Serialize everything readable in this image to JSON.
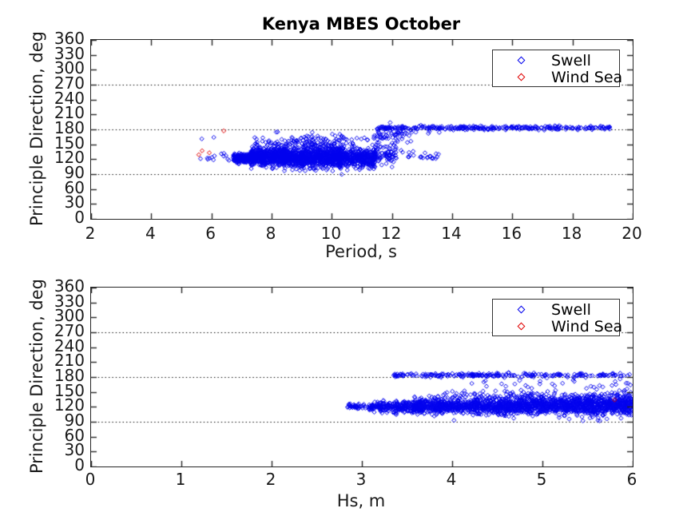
{
  "figure": {
    "title": "Kenya MBES October",
    "background_color": "#ffffff",
    "axis_color": "#262626",
    "text_color": "#1a1a1a",
    "gridline_color": "#000000",
    "swell_color": "#0000ee",
    "wind_sea_color": "#e00000",
    "marker": "open-diamond"
  },
  "chart_data": [
    {
      "type": "scatter",
      "title": "Kenya MBES October",
      "xlabel": "Period, s",
      "ylabel": "Principle Direction, deg",
      "xlim": [
        2,
        20
      ],
      "ylim": [
        0,
        360
      ],
      "xticks": [
        2,
        4,
        6,
        8,
        10,
        12,
        14,
        16,
        18,
        20
      ],
      "yticks": [
        0,
        30,
        60,
        90,
        120,
        150,
        180,
        210,
        240,
        270,
        300,
        330,
        360
      ],
      "gridlines_y": [
        90,
        180,
        270
      ],
      "grid_style": "dotted",
      "legend": {
        "position": "top-right",
        "entries": [
          "Swell",
          "Wind Sea"
        ]
      },
      "series": [
        {
          "name": "Swell",
          "marker": "diamond",
          "color": "#0000ee",
          "clusters": [
            {
              "x": [
                6.72,
                7.35
              ],
              "y_mean": 122.5,
              "y_sd": 4.5,
              "n": 260
            },
            {
              "x": [
                7.3,
                8.45
              ],
              "y_mean": 125,
              "y_sd": 8.5,
              "n": 560
            },
            {
              "x": [
                8.35,
                10.3
              ],
              "y_mean": 124,
              "y_sd": 10,
              "n": 950
            },
            {
              "x": [
                10.2,
                11.45
              ],
              "y_mean": 123,
              "y_sd": 9,
              "n": 430
            },
            {
              "x": [
                11.35,
                12.15
              ],
              "y_mean": 129,
              "y_sd": 11,
              "n": 90
            },
            {
              "x": [
                12.1,
                13.65
              ],
              "y_mean": 127,
              "y_sd": 6,
              "n": 26
            },
            {
              "x": [
                7.4,
                10.7
              ],
              "y_mean": 151,
              "y_sd": 6,
              "n": 120
            },
            {
              "x": [
                7.9,
                12.5
              ],
              "y_mean": 163,
              "y_sd": 5,
              "n": 50
            },
            {
              "x": [
                11.4,
                12.7
              ],
              "y_mean": 169,
              "y_sd": 9,
              "n": 36
            },
            {
              "x": [
                11.5,
                19.25
              ],
              "y_mean": 183,
              "y_sd": 2,
              "n": 310
            },
            {
              "x": [
                12.0,
                13.6
              ],
              "y_mean": 176,
              "y_sd": 2.5,
              "n": 12
            },
            {
              "x": [
                5.5,
                6.7
              ],
              "y_mean": 122,
              "y_sd": 3.5,
              "n": 12
            }
          ],
          "points": [
            [
              5.68,
              161
            ],
            [
              6.08,
              164
            ],
            [
              6.33,
              131
            ],
            [
              8.2,
              175
            ],
            [
              9.35,
              174
            ],
            [
              12.3,
              174
            ]
          ]
        },
        {
          "name": "Wind Sea",
          "marker": "diamond",
          "color": "#e00000",
          "clusters": [],
          "points": [
            [
              5.58,
              129
            ],
            [
              5.69,
              137
            ],
            [
              5.93,
              133
            ],
            [
              6.41,
              177
            ]
          ]
        }
      ]
    },
    {
      "type": "scatter",
      "title": "",
      "xlabel": "Hs, m",
      "ylabel": "Principle Direction, deg",
      "xlim": [
        0,
        6
      ],
      "ylim": [
        0,
        360
      ],
      "xticks": [
        0,
        1,
        2,
        3,
        4,
        5,
        6
      ],
      "yticks": [
        0,
        30,
        60,
        90,
        120,
        150,
        180,
        210,
        240,
        270,
        300,
        330,
        360
      ],
      "gridlines_y": [
        90,
        180,
        270
      ],
      "grid_style": "dotted",
      "legend": {
        "position": "top-right",
        "entries": [
          "Swell",
          "Wind Sea"
        ]
      },
      "series": [
        {
          "name": "Swell",
          "marker": "diamond",
          "color": "#0000ee",
          "clusters": [
            {
              "x": [
                2.83,
                3.12
              ],
              "y_mean": 120.5,
              "y_sd": 2.5,
              "n": 55
            },
            {
              "x": [
                3.1,
                3.6
              ],
              "y_mean": 119.5,
              "y_sd": 5.5,
              "n": 230
            },
            {
              "x": [
                3.55,
                4.5
              ],
              "y_mean": 121,
              "y_sd": 7.5,
              "n": 680
            },
            {
              "x": [
                4.5,
                5.3
              ],
              "y_mean": 122,
              "y_sd": 8.5,
              "n": 680
            },
            {
              "x": [
                5.3,
                6.0
              ],
              "y_mean": 123.5,
              "y_sd": 9.5,
              "n": 620
            },
            {
              "x": [
                3.8,
                6.0
              ],
              "y_mean": 142,
              "y_sd": 5,
              "n": 110
            },
            {
              "x": [
                3.35,
                6.0
              ],
              "y_mean": 184,
              "y_sd": 2,
              "n": 240
            },
            {
              "x": [
                4.2,
                6.0
              ],
              "y_mean": 164,
              "y_sd": 8,
              "n": 42
            }
          ],
          "points": []
        },
        {
          "name": "Wind Sea",
          "marker": "diamond",
          "color": "#e00000",
          "clusters": [],
          "points": [
            [
              5.8,
              134
            ]
          ]
        }
      ]
    }
  ]
}
